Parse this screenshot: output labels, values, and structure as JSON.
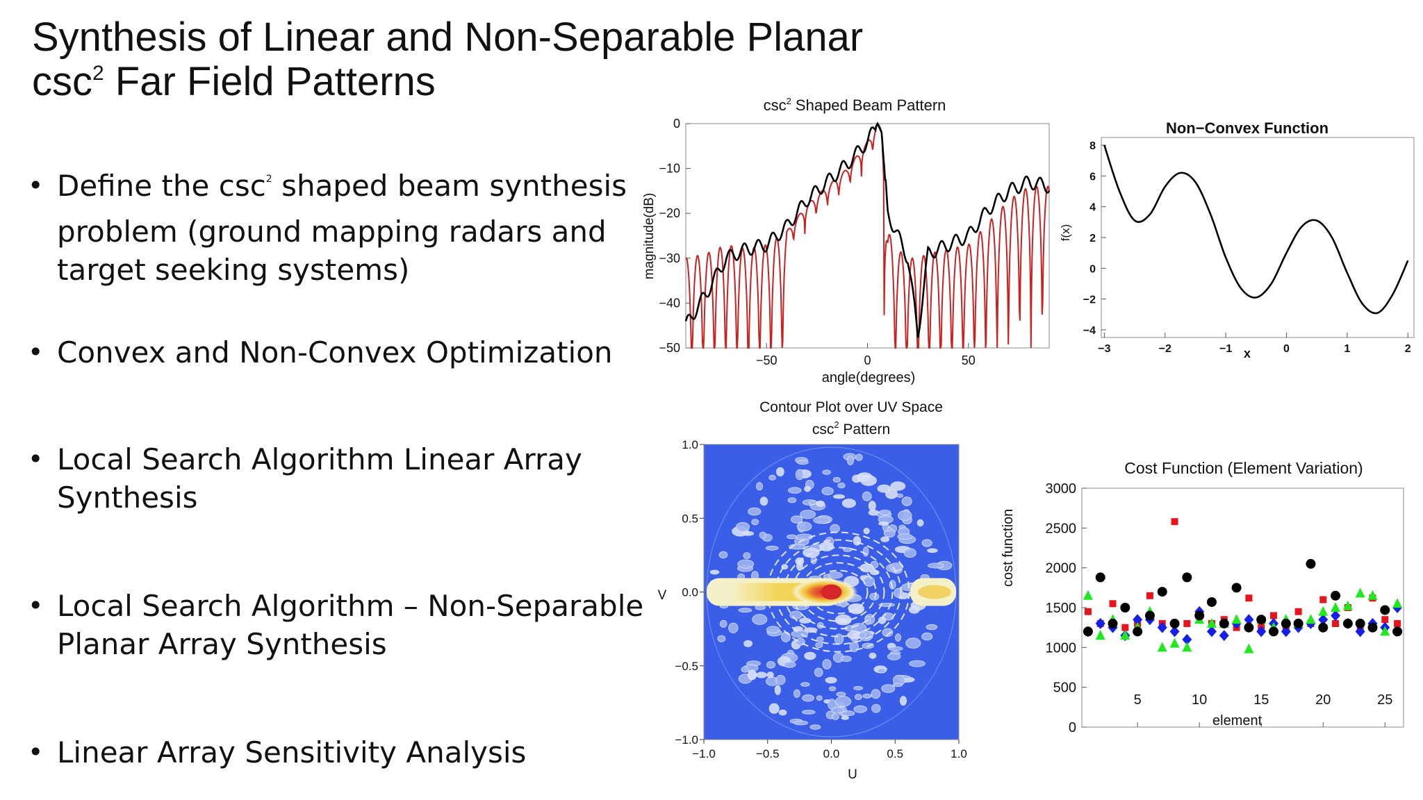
{
  "slide": {
    "title_line1": "Synthesis of Linear and Non-Separable Planar",
    "title_line2_pre": "csc",
    "title_line2_sup": "2",
    "title_line2_post": " Far Field Patterns",
    "bullets": [
      {
        "pre": "Define the csc",
        "sup": "2",
        "post": "  shaped beam synthesis\nproblem (ground mapping radars and\ntarget seeking systems)"
      },
      {
        "pre": "Convex and Non-Convex Optimization",
        "sup": "",
        "post": ""
      },
      {
        "pre": "Local Search Algorithm  Linear Array\nSynthesis",
        "sup": "",
        "post": ""
      },
      {
        "pre": "Local Search Algorithm – Non-Separable\nPlanar Array Synthesis",
        "sup": "",
        "post": ""
      },
      {
        "pre": "Linear Array Sensitivity Analysis",
        "sup": "",
        "post": ""
      }
    ]
  },
  "chart_data": [
    {
      "type": "line",
      "title_pre": "csc",
      "title_sup": "2",
      "title_post": " Shaped Beam Pattern",
      "xlabel": "angle(degrees)",
      "ylabel": "magnitude(dB)",
      "xlim": [
        -90,
        90
      ],
      "ylim": [
        -50,
        0
      ],
      "xticks": [
        -50,
        0,
        50
      ],
      "yticks": [
        0,
        -10,
        -20,
        -30,
        -40,
        -50
      ],
      "series": [
        {
          "color": "#cc1f1f",
          "style": "lobed",
          "x": [
            -90,
            -80,
            -70,
            -60,
            -50,
            -40,
            -30,
            -20,
            -10,
            0,
            5,
            7,
            10,
            15,
            20,
            25,
            30,
            40,
            50,
            60,
            70,
            80,
            90
          ],
          "y": [
            -30,
            -29,
            -27,
            -28,
            -27,
            -24,
            -18,
            -14,
            -10,
            -4,
            0,
            -1,
            -24,
            -28,
            -30,
            -30,
            -29,
            -28,
            -27,
            -22,
            -17,
            -14,
            -14
          ]
        },
        {
          "color": "#000000",
          "style": "smooth",
          "x": [
            -90,
            -80,
            -70,
            -60,
            -50,
            -40,
            -30,
            -20,
            -10,
            0,
            5,
            7,
            10,
            15,
            20,
            25,
            30,
            40,
            50,
            60,
            70,
            80,
            90
          ],
          "y": [
            -45,
            -38,
            -30,
            -28,
            -27,
            -23,
            -17,
            -13,
            -9,
            -4,
            0,
            -2,
            -20,
            -25,
            -30,
            -47,
            -29,
            -27,
            -25,
            -19,
            -15,
            -13,
            -14
          ]
        }
      ]
    },
    {
      "type": "line",
      "title": "Non−Convex Function",
      "xlabel": "x",
      "ylabel": "f(x)",
      "xlim": [
        -3,
        2
      ],
      "ylim": [
        -4.5,
        8.5
      ],
      "xticks": [
        -3,
        -2,
        -1,
        0,
        1,
        2
      ],
      "yticks": [
        8,
        6,
        4,
        2,
        0,
        -2,
        -4
      ],
      "series": [
        {
          "color": "#000000",
          "x": [
            -3,
            -2.75,
            -2.5,
            -2.25,
            -2,
            -1.75,
            -1.5,
            -1.25,
            -1,
            -0.75,
            -0.5,
            -0.25,
            0,
            0.25,
            0.5,
            0.75,
            1,
            1.25,
            1.5,
            1.75,
            2
          ],
          "y": [
            8.0,
            5.0,
            3.1,
            3.5,
            5.3,
            6.2,
            5.6,
            3.5,
            0.7,
            -1.3,
            -1.9,
            -1.0,
            1.0,
            2.7,
            3.1,
            2.0,
            -0.3,
            -2.3,
            -2.9,
            -1.7,
            0.5
          ]
        }
      ]
    },
    {
      "type": "heatmap",
      "title": "Contour Plot over UV Space",
      "subtitle_pre": "csc",
      "subtitle_sup": "2",
      "subtitle_post": " Pattern",
      "xlabel": "U",
      "ylabel": "V",
      "xlim": [
        -1.0,
        1.0
      ],
      "ylim": [
        -1.0,
        1.0
      ],
      "xticks": [
        "−1.0",
        "−0.5",
        "0.0",
        "0.5",
        "1.0"
      ],
      "yticks": [
        "1.0",
        "0.5",
        "0.0",
        "−0.5",
        "−1.0"
      ],
      "colors": {
        "background": "#3a5ee8",
        "low": "#9fb4f2",
        "mid": "#f4f0c8",
        "high": "#f2c53a",
        "peak": "#d7262b"
      }
    },
    {
      "type": "scatter",
      "title": "Cost Function (Element Variation)",
      "xlabel": "element",
      "ylabel": "cost function",
      "xlim": [
        1,
        26
      ],
      "ylim": [
        0,
        3000
      ],
      "xticks": [
        5,
        10,
        15,
        20,
        25
      ],
      "yticks": [
        0,
        500,
        1000,
        1500,
        2000,
        2500,
        3000
      ],
      "series": [
        {
          "marker": "square",
          "color": "#e8141c",
          "x": [
            1,
            2,
            3,
            4,
            5,
            6,
            7,
            8,
            9,
            10,
            11,
            12,
            13,
            14,
            15,
            16,
            17,
            18,
            19,
            20,
            21,
            22,
            23,
            24,
            25,
            26
          ],
          "y": [
            1450,
            1300,
            1550,
            1250,
            1300,
            1650,
            1300,
            2580,
            1300,
            1400,
            1300,
            1350,
            1250,
            1620,
            1250,
            1400,
            1250,
            1450,
            1300,
            1600,
            1300,
            1500,
            1250,
            1620,
            1350,
            1300
          ]
        },
        {
          "marker": "diamond",
          "color": "#1420e8",
          "x": [
            1,
            2,
            3,
            4,
            5,
            6,
            7,
            8,
            9,
            10,
            11,
            12,
            13,
            14,
            15,
            16,
            17,
            18,
            19,
            20,
            21,
            22,
            23,
            24,
            25,
            26
          ],
          "y": [
            1200,
            1300,
            1250,
            1150,
            1350,
            1350,
            1250,
            1200,
            1100,
            1450,
            1200,
            1150,
            1300,
            1350,
            1200,
            1300,
            1200,
            1250,
            1300,
            1350,
            1400,
            1300,
            1200,
            1300,
            1250,
            1500
          ]
        },
        {
          "marker": "triangle",
          "color": "#1fe81f",
          "x": [
            1,
            2,
            3,
            4,
            5,
            6,
            7,
            8,
            9,
            10,
            11,
            12,
            13,
            14,
            15,
            16,
            17,
            18,
            19,
            20,
            21,
            22,
            23,
            24,
            25,
            26
          ],
          "y": [
            1650,
            1150,
            1350,
            1150,
            1250,
            1450,
            1000,
            1050,
            1000,
            1350,
            1300,
            1300,
            1350,
            980,
            1350,
            1250,
            1350,
            1300,
            1350,
            1450,
            1500,
            1520,
            1680,
            1650,
            1200,
            1550
          ]
        },
        {
          "marker": "circle",
          "color": "#000000",
          "x": [
            1,
            2,
            3,
            4,
            5,
            6,
            7,
            8,
            9,
            10,
            11,
            12,
            13,
            14,
            15,
            16,
            17,
            18,
            19,
            20,
            21,
            22,
            23,
            24,
            25,
            26
          ],
          "y": [
            1200,
            1880,
            1300,
            1500,
            1200,
            1400,
            1700,
            1300,
            1880,
            1400,
            1570,
            1300,
            1750,
            1250,
            1350,
            1200,
            1300,
            1300,
            2050,
            1250,
            1650,
            1300,
            1300,
            1250,
            1470,
            1200
          ]
        }
      ]
    }
  ]
}
